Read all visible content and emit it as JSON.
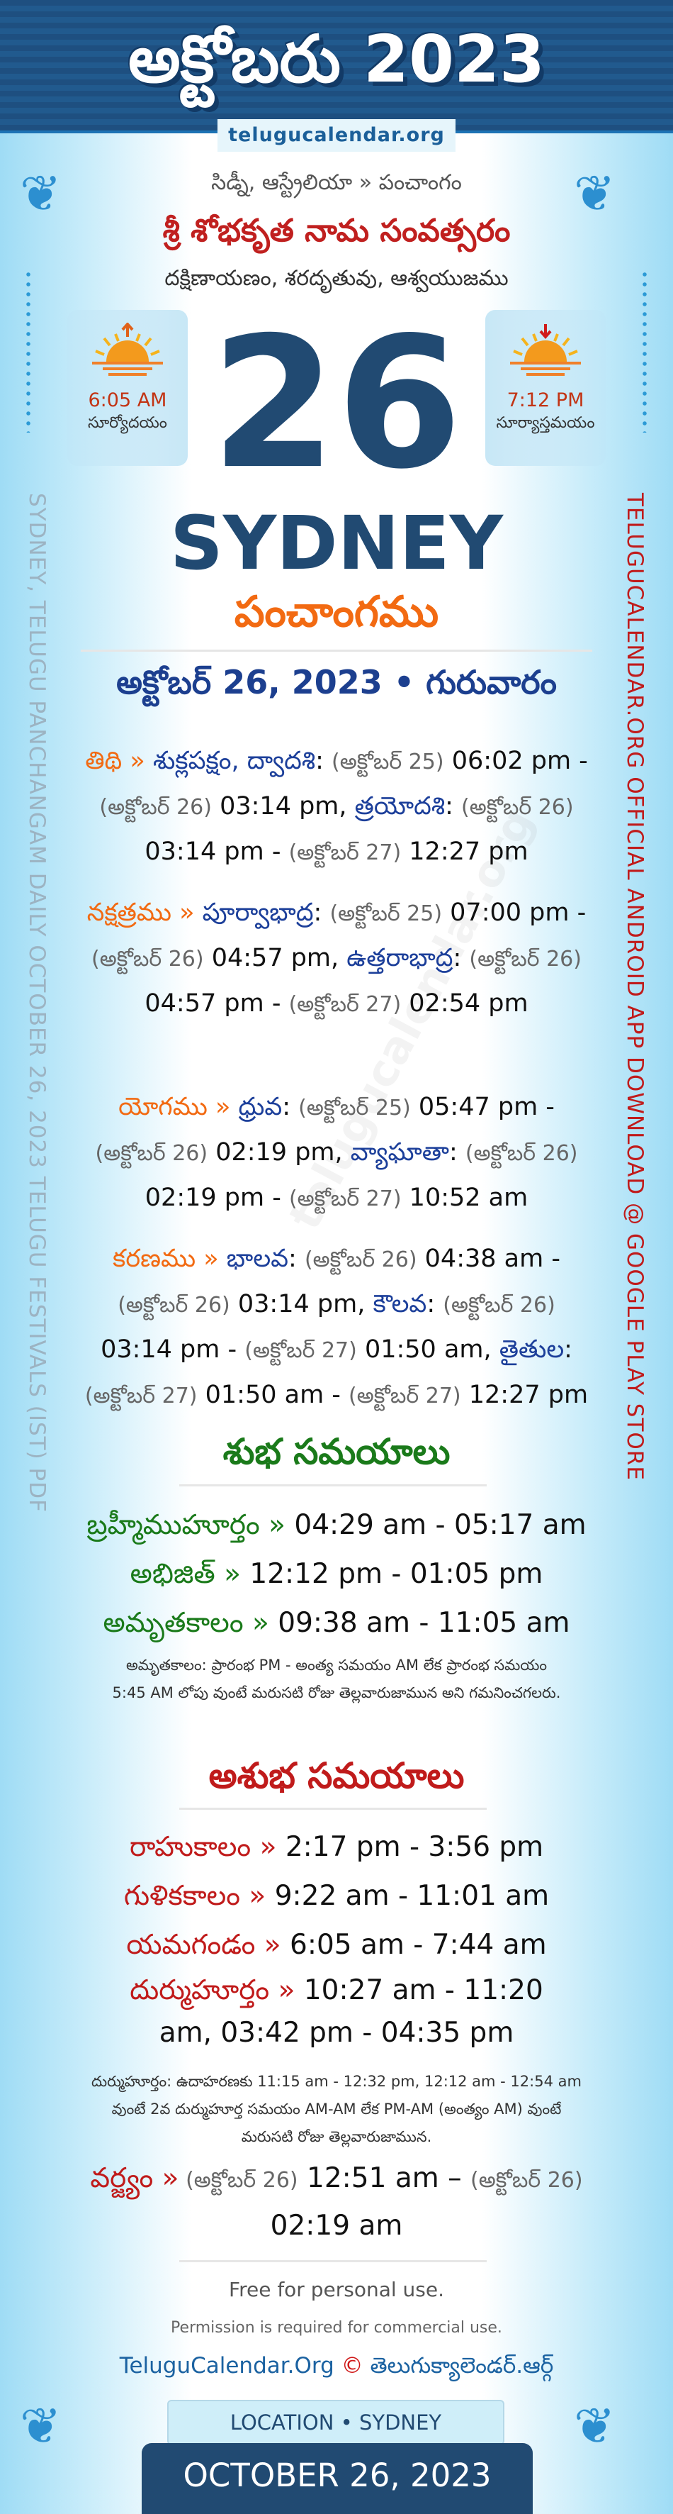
{
  "header": {
    "title": "అక్టోబరు 2023",
    "domain": "telugucalendar.org"
  },
  "side": {
    "left": "SYDNEY, TELUGU PANCHANGAM DAILY OCTOBER 26, 2023 TELUGU FESTIVALS (IST) PDF",
    "right": "TELUGUCALENDAR.ORG OFFICIAL ANDROID APP DOWNLOAD @ GOOGLE PLAY STORE"
  },
  "watermark": "telugucalendar.org",
  "breadcrumb": "సిడ్నీ, ఆస్ట్రేలియా » పంచాంగం",
  "samvatsaram": "శ్రీ శోభకృత నామ సంవత్సరం",
  "ayanam": "దక్షిణాయణం, శరదృతువు, ఆశ్వయుజము",
  "sunrise": {
    "time": "6:05 AM",
    "label": "సూర్యోదయం",
    "icon": "sunrise-icon"
  },
  "sunset": {
    "time": "7:12 PM",
    "label": "సూర్యాస్తమయం",
    "icon": "sunset-icon"
  },
  "day": "26",
  "city": "SYDNEY",
  "panchangam": "పంచాంగము",
  "date_line": "అక్టోబర్ 26, 2023 • గురువారం",
  "entries": [
    [
      {
        "c": "lbl",
        "t": "తిథి » "
      },
      {
        "c": "nm",
        "t": "శుక్లపక్షం, ద్వాదశి"
      },
      {
        "c": "tm",
        "t": ": "
      },
      {
        "c": "dt",
        "t": "(అక్టోబర్ 25)"
      },
      {
        "c": "tm",
        "t": " 06:02 pm - "
      },
      {
        "c": "dt",
        "t": "(అక్టోబర్ 26)"
      },
      {
        "c": "tm",
        "t": " 03:14 pm, "
      },
      {
        "c": "nm",
        "t": "త్రయోదశి"
      },
      {
        "c": "tm",
        "t": ": "
      },
      {
        "c": "dt",
        "t": "(అక్టోబర్ 26)"
      },
      {
        "c": "tm",
        "t": " 03:14 pm - "
      },
      {
        "c": "dt",
        "t": "(అక్టోబర్ 27)"
      },
      {
        "c": "tm",
        "t": " 12:27 pm"
      }
    ],
    [
      {
        "c": "lbl",
        "t": "నక్షత్రము » "
      },
      {
        "c": "nm",
        "t": "పూర్వాభాద్ర"
      },
      {
        "c": "tm",
        "t": ": "
      },
      {
        "c": "dt",
        "t": "(అక్టోబర్ 25)"
      },
      {
        "c": "tm",
        "t": " 07:00 pm - "
      },
      {
        "c": "dt",
        "t": "(అక్టోబర్ 26)"
      },
      {
        "c": "tm",
        "t": " 04:57 pm, "
      },
      {
        "c": "nm",
        "t": "ఉత్తరాభాద్ర"
      },
      {
        "c": "tm",
        "t": ": "
      },
      {
        "c": "dt",
        "t": "(అక్టోబర్ 26)"
      },
      {
        "c": "tm",
        "t": " 04:57 pm - "
      },
      {
        "c": "dt",
        "t": "(అక్టోబర్ 27)"
      },
      {
        "c": "tm",
        "t": " 02:54 pm"
      }
    ],
    [
      {
        "c": "lbl",
        "t": "యోగము » "
      },
      {
        "c": "nm",
        "t": "ధ్రువ"
      },
      {
        "c": "tm",
        "t": ": "
      },
      {
        "c": "dt",
        "t": "(అక్టోబర్ 25)"
      },
      {
        "c": "tm",
        "t": " 05:47 pm - "
      },
      {
        "c": "dt",
        "t": "(అక్టోబర్ 26)"
      },
      {
        "c": "tm",
        "t": " 02:19 pm, "
      },
      {
        "c": "nm",
        "t": "వ్యాఘాతా"
      },
      {
        "c": "tm",
        "t": ": "
      },
      {
        "c": "dt",
        "t": "(అక్టోబర్ 26)"
      },
      {
        "c": "tm",
        "t": " 02:19 pm - "
      },
      {
        "c": "dt",
        "t": "(అక్టోబర్ 27)"
      },
      {
        "c": "tm",
        "t": " 10:52 am"
      }
    ],
    [
      {
        "c": "lbl",
        "t": "కరణము » "
      },
      {
        "c": "nm",
        "t": "భాలవ"
      },
      {
        "c": "tm",
        "t": ": "
      },
      {
        "c": "dt",
        "t": "(అక్టోబర్ 26)"
      },
      {
        "c": "tm",
        "t": " 04:38 am - "
      },
      {
        "c": "dt",
        "t": "(అక్టోబర్ 26)"
      },
      {
        "c": "tm",
        "t": " 03:14 pm, "
      },
      {
        "c": "nm",
        "t": "కౌలవ"
      },
      {
        "c": "tm",
        "t": ": "
      },
      {
        "c": "dt",
        "t": "(అక్టోబర్ 26)"
      },
      {
        "c": "tm",
        "t": " 03:14 pm - "
      },
      {
        "c": "dt",
        "t": "(అక్టోబర్ 27)"
      },
      {
        "c": "tm",
        "t": " 01:50 am, "
      },
      {
        "c": "nm",
        "t": "తైతుల"
      },
      {
        "c": "tm",
        "t": ": "
      },
      {
        "c": "dt",
        "t": "(అక్టోబర్ 27)"
      },
      {
        "c": "tm",
        "t": " 01:50 am - "
      },
      {
        "c": "dt",
        "t": "(అక్టోబర్ 27)"
      },
      {
        "c": "tm",
        "t": " 12:27 pm"
      }
    ]
  ],
  "shubha": {
    "title": "శుభ సమయాలు",
    "rows": [
      {
        "label": "బ్రహ్మీముహూర్తం »",
        "value": " 04:29 am - 05:17 am"
      },
      {
        "label": "అభిజిత్ »",
        "value": " 12:12 pm - 01:05 pm"
      },
      {
        "label": "అమృతకాలం »",
        "value": " 09:38 am - 11:05 am"
      }
    ],
    "note": "అమృతకాలం: ప్రారంభ PM - అంత్య సమయం AM లేక ప్రారంభ సమయం 5:45 AM లోపు వుంటే మరుసటి రోజు తెల్లవారుజామున అని గమనించగలరు."
  },
  "ashubha": {
    "title": "అశుభ సమయాలు",
    "rows": [
      {
        "label": "రాహుకాలం »",
        "value": " 2:17 pm - 3:56 pm"
      },
      {
        "label": "గుళికకాలం »",
        "value": " 9:22 am - 11:01 am"
      },
      {
        "label": "యమగండం »",
        "value": " 6:05 am - 7:44 am"
      },
      {
        "label": "దుర్ముహూర్తం »",
        "value": " 10:27 am - 11:20 am, 03:42 pm - 04:35 pm"
      }
    ],
    "note": "దుర్ముహూర్తం: ఉదాహరణకు 11:15 am - 12:32 pm, 12:12 am - 12:54 am వుంటే 2వ దుర్ముహూర్త సమయం AM-AM లేక PM-AM (అంత్యం AM) వుంటే మరుసటి రోజు తెల్లవారుజామున.",
    "varjyam": {
      "label": "వర్జ్యం »",
      "d1": " (అక్టోబర్ 26)",
      "t1": " 12:51 am – ",
      "d2": "(అక్టోబర్ 26)",
      "t2": " 02:19 am"
    }
  },
  "footer": {
    "free": "Free for personal use.",
    "permission": "Permission is required for commercial use.",
    "site_en": "TeluguCalendar.Org",
    "copyright": "©",
    "site_te": "తెలుగుక్యాలెండర్.ఆర్గ్"
  },
  "location": "LOCATION • SYDNEY",
  "bottom_date": "OCTOBER 26, 2023",
  "colors": {
    "header": "#214a72",
    "accent": "#f26a12",
    "good": "#1a7a1a",
    "bad": "#c01b1b",
    "name": "#1c3f9a"
  }
}
